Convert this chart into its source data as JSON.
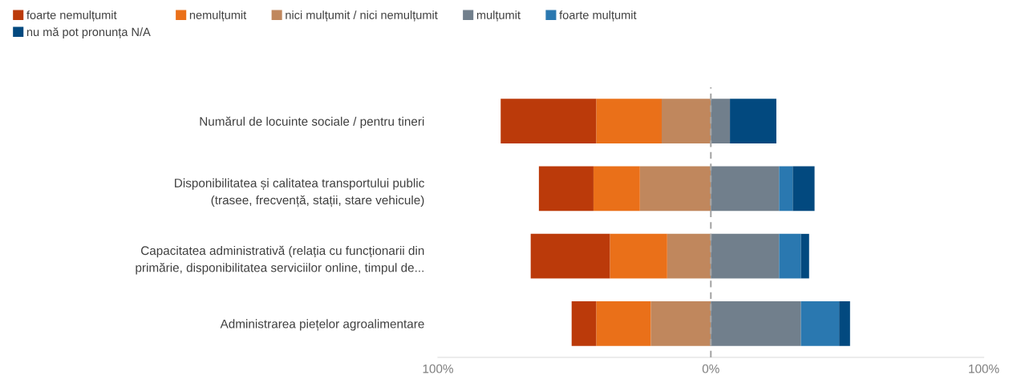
{
  "chart_data": {
    "type": "bar",
    "orientation": "horizontal",
    "stacked": true,
    "categories": [
      "Numărul de locuinte sociale / pentru tineri",
      "Disponibilitatea și calitatea transportului public\n(trasee, frecvență, stații, stare vehicule)",
      "Capacitatea administrativă (relația cu funcționarii din\nprimărie, disponibilitatea serviciilor online, timpul de...",
      "Administrarea piețelor agroalimentare"
    ],
    "series": [
      {
        "name": "foarte nemulțumit",
        "color": "#bb3a0a",
        "values": [
          -35,
          -20,
          -29,
          -9
        ]
      },
      {
        "name": "nemulțumit",
        "color": "#ea7019",
        "values": [
          -24,
          -17,
          -21,
          -20
        ]
      },
      {
        "name": "nici mulțumit / nici nemulțumit",
        "color": "#c0875d",
        "values": [
          -18,
          -26,
          -16,
          -22
        ]
      },
      {
        "name": "mulțumit",
        "color": "#717f8c",
        "values": [
          7,
          25,
          25,
          33
        ]
      },
      {
        "name": "foarte mulțumit",
        "color": "#2a78b0",
        "values": [
          0,
          5,
          8,
          14
        ]
      },
      {
        "name": "nu mă pot pronunța N/A",
        "color": "#02497f",
        "values": [
          17,
          8,
          3,
          4
        ]
      }
    ],
    "xlim": [
      -100,
      100
    ],
    "xticks": [
      {
        "value": -100,
        "label": "100%"
      },
      {
        "value": 0,
        "label": "0%"
      },
      {
        "value": 100,
        "label": "100%"
      }
    ],
    "ref_lines": [
      {
        "axis": "x",
        "value": 0,
        "label": null,
        "color": "#a6a6a6",
        "line_style": "dashed"
      }
    ],
    "grid": false,
    "legend": "top"
  }
}
